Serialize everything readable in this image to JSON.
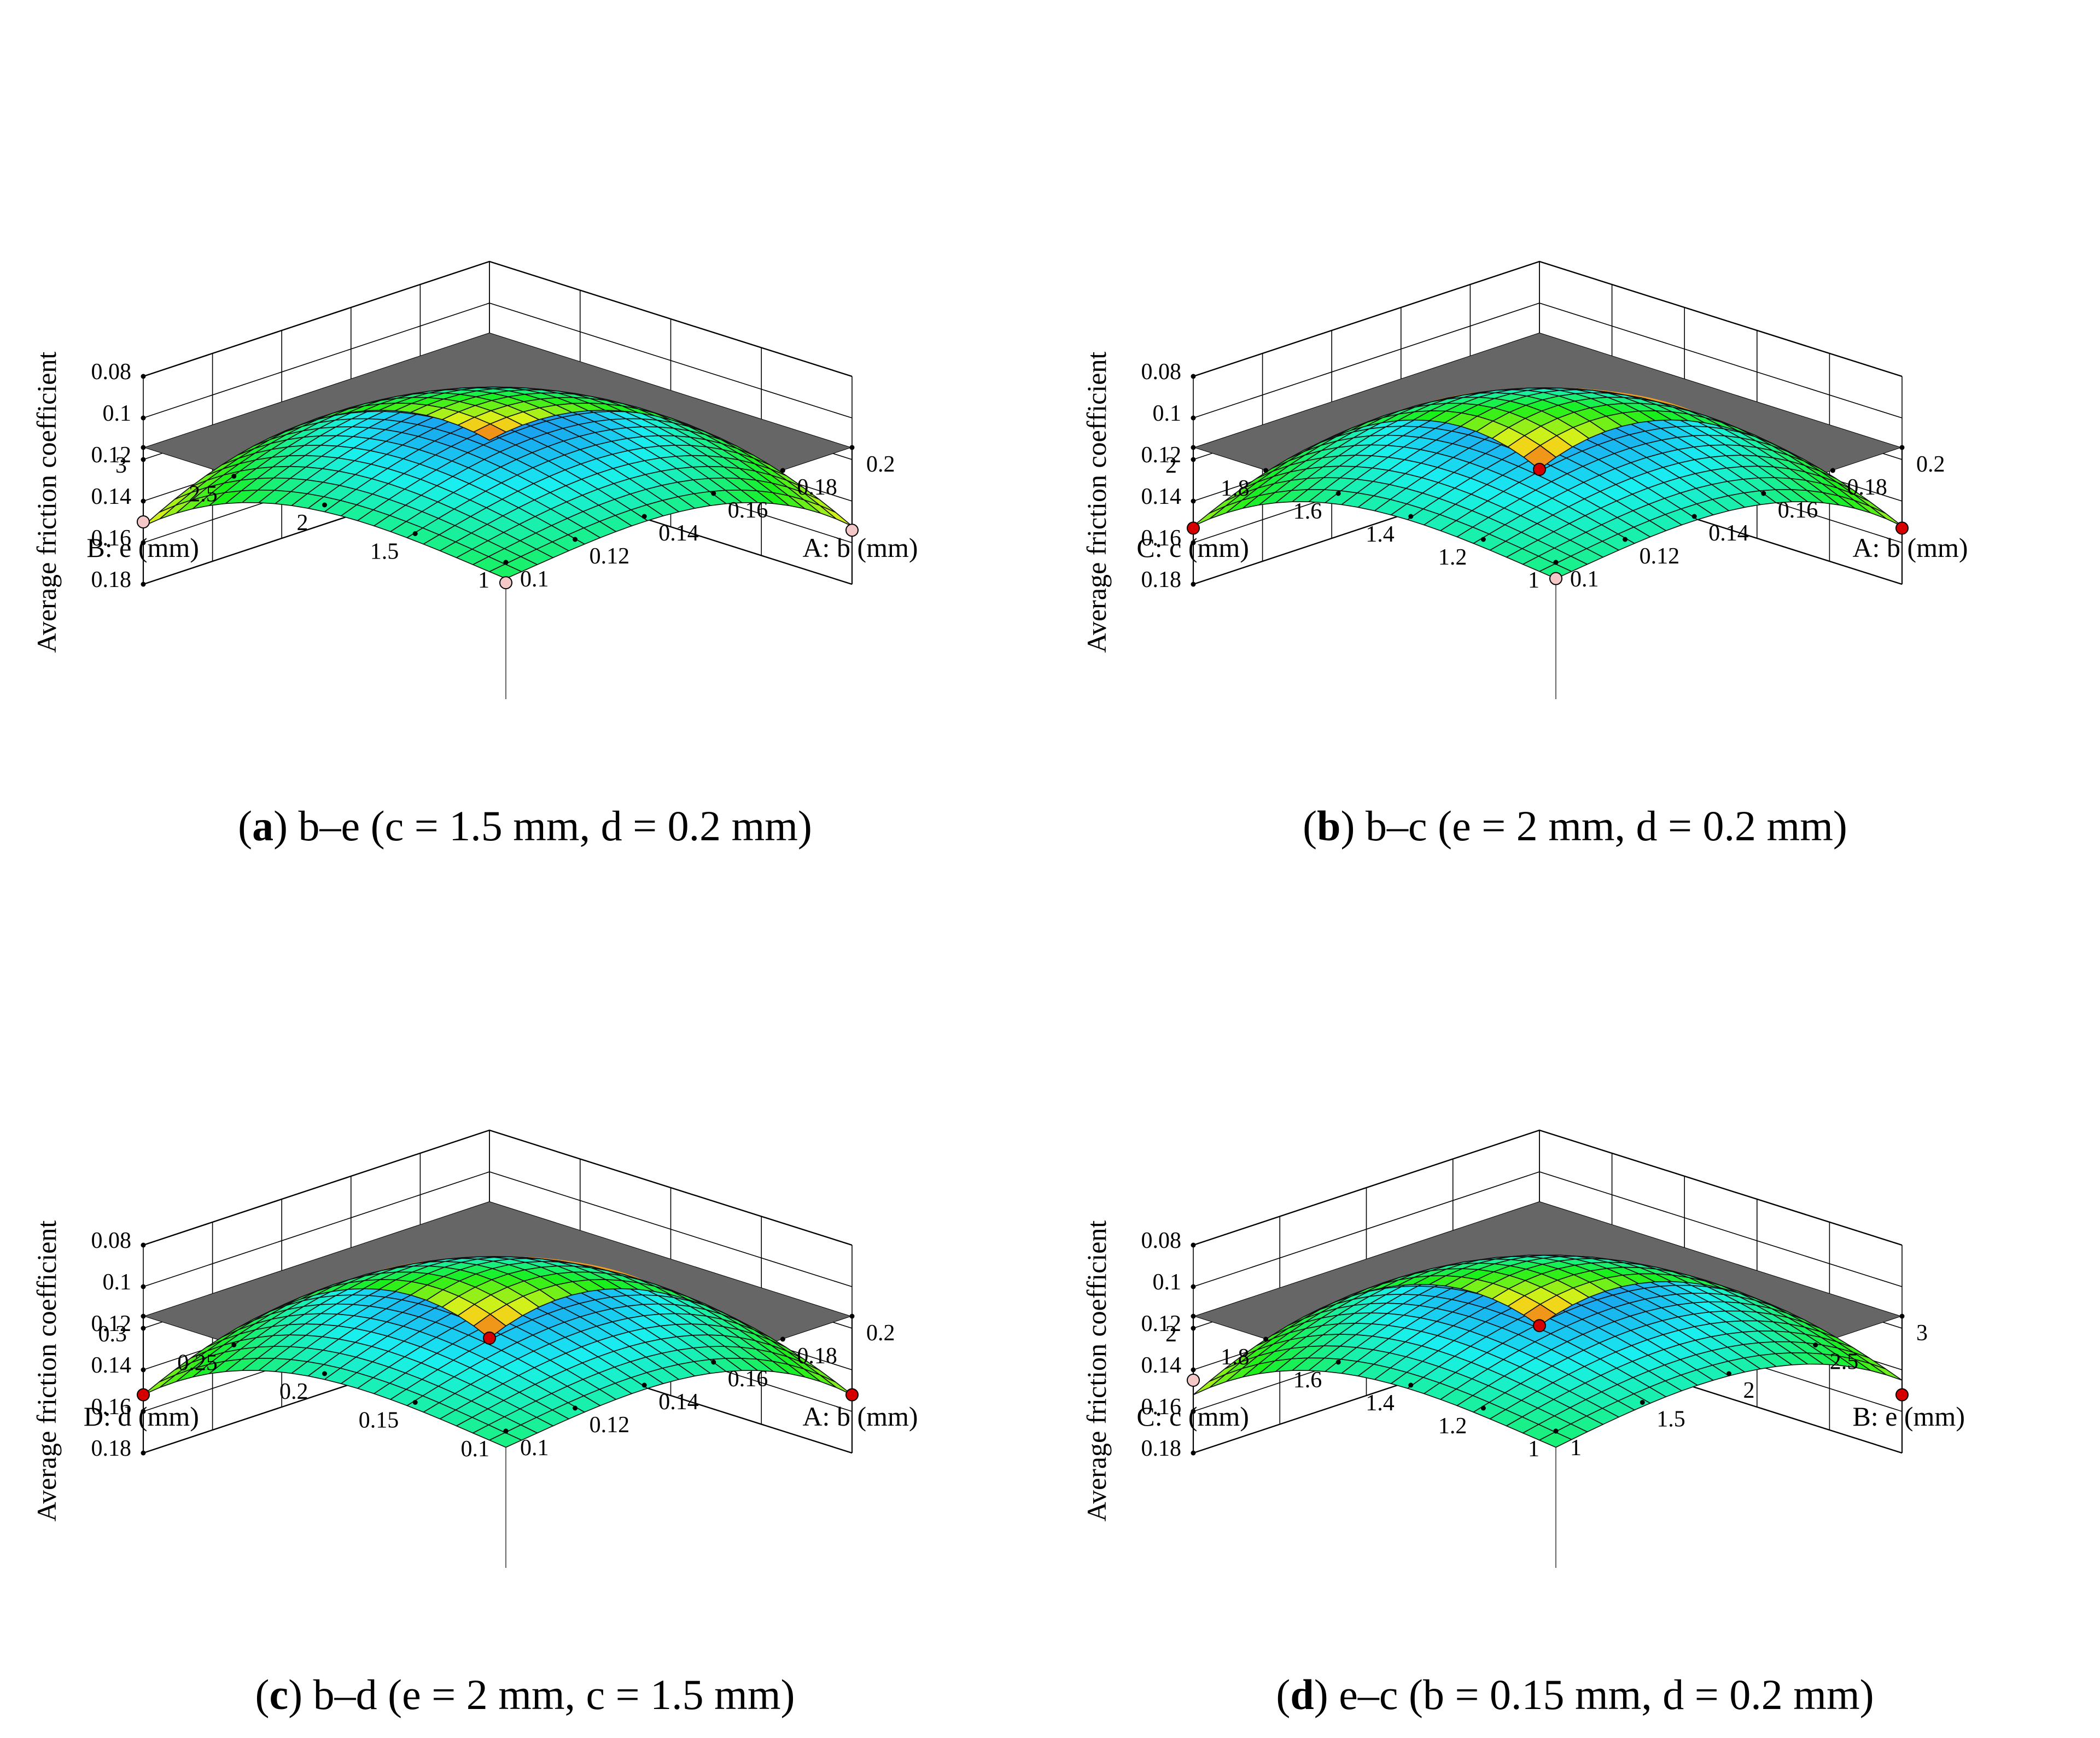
{
  "figure": {
    "zlabel": "Average friction coefficient",
    "z_ticks": [
      "0.18",
      "0.16",
      "0.14",
      "0.12",
      "0.1",
      "0.08"
    ]
  },
  "colors": {
    "floor": "#666666",
    "contour_blue": "#2aa7ff",
    "contour_cyan": "#1fe0c8",
    "contour_green": "#3ce03c",
    "contour_yellow": "#e0e040",
    "contour_orange": "#f0a020",
    "point_red": "#d40000",
    "point_pink": "#f5c8c8"
  },
  "chart_data": [
    {
      "type": "surface",
      "panel_letter": "a",
      "caption_text": " b–e (c = 1.5 mm, d = 0.2 mm)",
      "xlabel": "A: b (mm)",
      "ylabel": "B: e (mm)",
      "zlabel": "Average friction coefficient",
      "x_ticks": [
        "0.1",
        "0.12",
        "0.14",
        "0.16",
        "0.18",
        "0.2"
      ],
      "y_ticks": [
        "1",
        "1.5",
        "2",
        "2.5",
        "3"
      ],
      "xlim": [
        0.1,
        0.2
      ],
      "ylim": [
        1,
        3
      ],
      "zlim": [
        0.08,
        0.18
      ],
      "surface": {
        "z_min": 0.098,
        "z_corners": [
          0.122,
          0.152,
          0.152,
          0.166
        ]
      },
      "design_points": [
        {
          "x": 0.1,
          "y": 3,
          "z": 0.15,
          "style": "pink"
        },
        {
          "x": 0.2,
          "y": 1,
          "z": 0.154,
          "style": "pink"
        },
        {
          "x": 0.1,
          "y": 1,
          "z": 0.124,
          "style": "pink"
        }
      ]
    },
    {
      "type": "surface",
      "panel_letter": "b",
      "caption_text": " b–c (e = 2 mm, d = 0.2 mm)",
      "xlabel": "A: b (mm)",
      "ylabel": "C: c (mm)",
      "zlabel": "Average friction coefficient",
      "x_ticks": [
        "0.1",
        "0.12",
        "0.14",
        "0.16",
        "0.18",
        "0.2"
      ],
      "y_ticks": [
        "1",
        "1.2",
        "1.4",
        "1.6",
        "1.8",
        "2"
      ],
      "xlim": [
        0.1,
        0.2
      ],
      "ylim": [
        1,
        2
      ],
      "zlim": [
        0.08,
        0.18
      ],
      "surface": {
        "z_min": 0.097,
        "z_corners": [
          0.122,
          0.152,
          0.152,
          0.18
        ]
      },
      "design_points": [
        {
          "x": 0.2,
          "y": 2,
          "z": 0.18,
          "style": "red"
        },
        {
          "x": 0.1,
          "y": 2,
          "z": 0.153,
          "style": "red"
        },
        {
          "x": 0.2,
          "y": 1,
          "z": 0.153,
          "style": "red"
        },
        {
          "x": 0.1,
          "y": 1,
          "z": 0.122,
          "style": "pink"
        }
      ]
    },
    {
      "type": "surface",
      "panel_letter": "c",
      "caption_text": " b–d (e = 2 mm, c = 1.5 mm)",
      "xlabel": "A: b (mm)",
      "ylabel": "D: d (mm)",
      "zlabel": "Average friction coefficient",
      "x_ticks": [
        "0.1",
        "0.12",
        "0.14",
        "0.16",
        "0.18",
        "0.2"
      ],
      "y_ticks": [
        "0.1",
        "0.15",
        "0.2",
        "0.25",
        "0.3"
      ],
      "xlim": [
        0.1,
        0.2
      ],
      "ylim": [
        0.1,
        0.3
      ],
      "zlim": [
        0.08,
        0.18
      ],
      "surface": {
        "z_min": 0.097,
        "z_corners": [
          0.122,
          0.152,
          0.152,
          0.18
        ]
      },
      "design_points": [
        {
          "x": 0.2,
          "y": 0.3,
          "z": 0.18,
          "style": "red"
        },
        {
          "x": 0.1,
          "y": 0.3,
          "z": 0.152,
          "style": "red"
        },
        {
          "x": 0.2,
          "y": 0.1,
          "z": 0.152,
          "style": "red"
        }
      ]
    },
    {
      "type": "surface",
      "panel_letter": "d",
      "caption_text": " e–c (b = 0.15 mm, d = 0.2 mm)",
      "xlabel": "B: e (mm)",
      "ylabel": "C: c (mm)",
      "zlabel": "Average friction coefficient",
      "x_ticks": [
        "1",
        "1.5",
        "2",
        "2.5",
        "3"
      ],
      "y_ticks": [
        "1",
        "1.2",
        "1.4",
        "1.6",
        "1.8",
        "2"
      ],
      "xlim": [
        1,
        3
      ],
      "ylim": [
        1,
        2
      ],
      "zlim": [
        0.08,
        0.18
      ],
      "surface": {
        "z_min": 0.097,
        "z_corners": [
          0.122,
          0.145,
          0.152,
          0.174
        ]
      },
      "design_points": [
        {
          "x": 3,
          "y": 2,
          "z": 0.174,
          "style": "red"
        },
        {
          "x": 1,
          "y": 2,
          "z": 0.145,
          "style": "pink"
        },
        {
          "x": 3,
          "y": 1,
          "z": 0.152,
          "style": "red"
        }
      ]
    }
  ]
}
